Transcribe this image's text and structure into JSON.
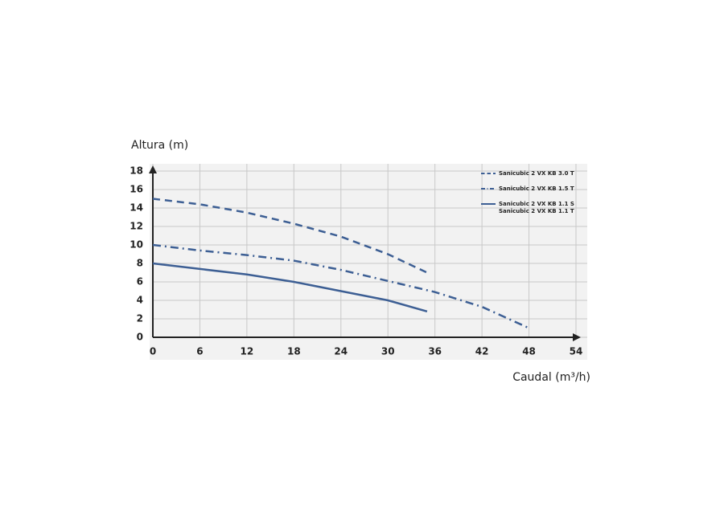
{
  "chart_data": {
    "type": "line",
    "y_label": "Altura (m)",
    "x_label": "Caudal (m³/h)",
    "xlim": [
      0,
      54
    ],
    "ylim": [
      0,
      18
    ],
    "xticks": [
      0,
      6,
      12,
      18,
      24,
      30,
      36,
      42,
      48,
      54
    ],
    "yticks": [
      0,
      2,
      4,
      6,
      8,
      10,
      12,
      14,
      16,
      18
    ],
    "grid": true,
    "legend": "top-right",
    "series": [
      {
        "name": "Sanicubic 2 VX KB 3.0 T",
        "color": "#3d5f94",
        "dash": "dashed",
        "x": [
          0,
          6,
          12,
          18,
          24,
          30,
          35
        ],
        "values": [
          15,
          14.4,
          13.5,
          12.3,
          10.9,
          9,
          7
        ]
      },
      {
        "name": "Sanicubic 2 VX KB 1.5 T",
        "color": "#3d5f94",
        "dash": "dashdot",
        "x": [
          0,
          6,
          12,
          18,
          24,
          30,
          36,
          42,
          48
        ],
        "values": [
          10,
          9.4,
          8.9,
          8.3,
          7.3,
          6.1,
          4.9,
          3.3,
          1
        ]
      },
      {
        "name": [
          "Sanicubic 2 VX KB 1.1 S",
          "Sanicubic 2 VX KB 1.1 T"
        ],
        "color": "#3d5f94",
        "dash": "solid",
        "x": [
          0,
          6,
          12,
          18,
          24,
          30,
          35
        ],
        "values": [
          8,
          7.4,
          6.8,
          6,
          5,
          4,
          2.8
        ]
      }
    ]
  }
}
